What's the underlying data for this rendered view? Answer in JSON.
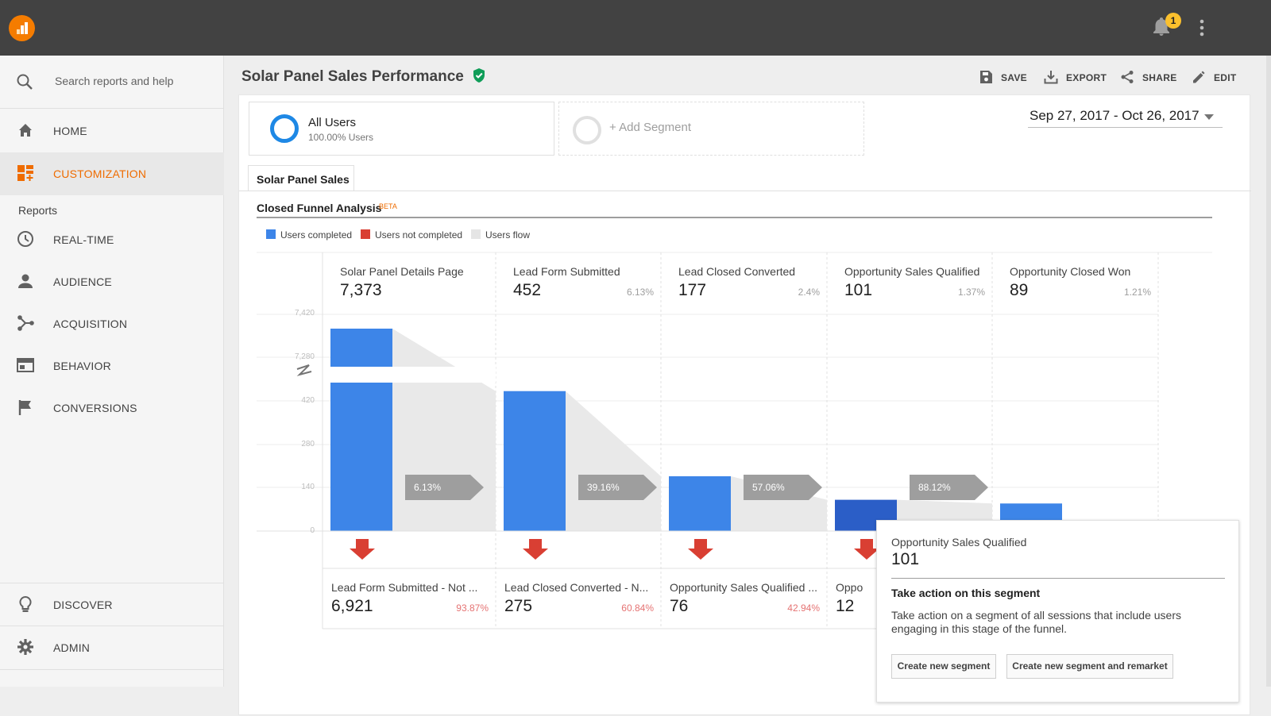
{
  "app": {
    "notification_count": "1"
  },
  "search": {
    "placeholder": "Search reports and help"
  },
  "nav": {
    "home": "HOME",
    "customization": "CUSTOMIZATION",
    "reports_heading": "Reports",
    "realtime": "REAL-TIME",
    "audience": "AUDIENCE",
    "acquisition": "ACQUISITION",
    "behavior": "BEHAVIOR",
    "conversions": "CONVERSIONS",
    "discover": "DISCOVER",
    "admin": "ADMIN"
  },
  "header": {
    "title": "Solar Panel Sales Performance",
    "save": "SAVE",
    "export": "EXPORT",
    "share": "SHARE",
    "edit": "EDIT"
  },
  "segments": {
    "active_name": "All Users",
    "active_sub": "100.00% Users",
    "add_label": "+ Add Segment"
  },
  "date_range": "Sep 27, 2017 - Oct 26, 2017",
  "tab": {
    "label": "Solar Panel Sales"
  },
  "funnel": {
    "title": "Closed Funnel Analysis",
    "badge": "BETA",
    "legend": [
      {
        "label": "Users completed",
        "color": "#3d85e8"
      },
      {
        "label": "Users not completed",
        "color": "#d93f33"
      },
      {
        "label": "Users flow",
        "color": "#e5e5e5"
      }
    ]
  },
  "chart_data": {
    "type": "bar",
    "categories": [
      "Solar Panel Details Page",
      "Lead Form Submitted",
      "Lead Closed Converted",
      "Opportunity Sales Qualified",
      "Opportunity Closed Won"
    ],
    "values": [
      7373,
      452,
      177,
      101,
      89
    ],
    "stage_pct": [
      "",
      "6.13%",
      "2.4%",
      "1.37%",
      "1.21%"
    ],
    "flow_pct": [
      "6.13%",
      "39.16%",
      "57.06%",
      "88.12%"
    ],
    "dropoffs": [
      {
        "label": "Lead Form Submitted - Not ...",
        "value": "6,921",
        "pct": "93.87%"
      },
      {
        "label": "Lead Closed Converted - N...",
        "value": "275",
        "pct": "60.84%"
      },
      {
        "label": "Opportunity Sales Qualified ...",
        "value": "76",
        "pct": "42.94%"
      },
      {
        "label": "Oppo",
        "value": "12",
        "pct": ""
      }
    ],
    "y_ticks": [
      "7,420",
      "7,280",
      "420",
      "280",
      "140",
      "0"
    ],
    "axis_break": true,
    "grid": true
  },
  "tooltip": {
    "stage": "Opportunity Sales Qualified",
    "count": "101",
    "heading": "Take action on this segment",
    "description": "Take action on a segment of all sessions that include users engaging in this stage of the funnel.",
    "btn_create": "Create new segment",
    "btn_remarket": "Create new segment and remarket"
  }
}
